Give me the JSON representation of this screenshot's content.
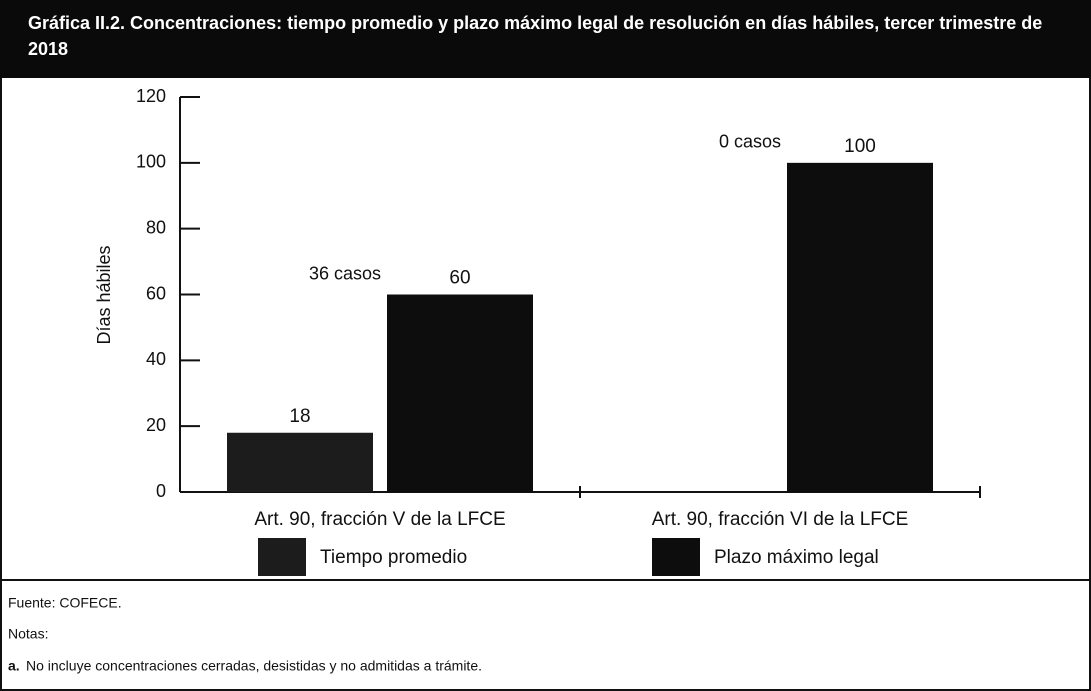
{
  "chart_data": {
    "type": "bar",
    "title": "Gráfica II.2. Concentraciones: tiempo promedio y plazo máximo legal de resolución en días hábiles, tercer trimestre de 2018",
    "y_label": "Días hábiles",
    "categories": [
      "Art. 90, fracción V de la LFCE",
      "Art. 90, fracción VI de la LFCE"
    ],
    "series": [
      {
        "name": "Tiempo promedio",
        "color": "#1c1c1c",
        "values": [
          18,
          null
        ]
      },
      {
        "name": "Plazo máximo legal",
        "color": "#0d0d0d",
        "values": [
          60,
          100
        ]
      }
    ],
    "annotations": [
      "36 casos",
      "0 casos"
    ],
    "ylim": [
      0,
      120
    ],
    "yticks": [
      0,
      20,
      40,
      60,
      80,
      100,
      120
    ],
    "legend": "bottom"
  },
  "footer": {
    "source": "Fuente: COFECE.",
    "notes_label": "Notas:",
    "note_marker": "a.",
    "note_text": "No incluye concentraciones cerradas, desistidas y no admitidas a trámite."
  }
}
